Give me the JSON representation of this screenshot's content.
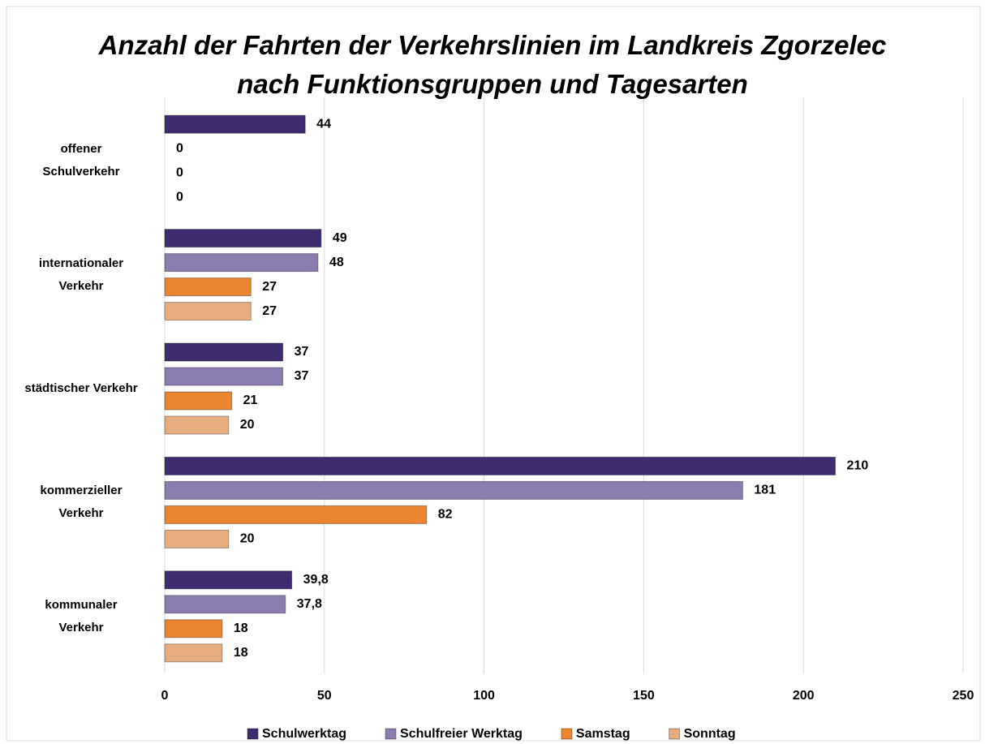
{
  "chart_data": {
    "type": "hbar",
    "title": "Anzahl der Fahrten der Verkehrslinien im Landkreis Zgorzelec\nnach Funktionsgruppen und Tagesarten",
    "categories": [
      "offener\nSchulverkehr",
      "internationaler\nVerkehr",
      "städtischer Verkehr",
      "kommerzieller\nVerkehr",
      "kommunaler\nVerkehr"
    ],
    "series": [
      {
        "name": "Schulwerktag",
        "color": "#3e2b70",
        "values": [
          44,
          49,
          37,
          210,
          39.8
        ],
        "value_labels": [
          "44",
          "49",
          "37",
          "210",
          "39,8"
        ]
      },
      {
        "name": "Schulfreier Werktag",
        "color": "#8c7db0",
        "values": [
          0,
          48,
          37,
          181,
          37.8
        ],
        "value_labels": [
          "0",
          "48",
          "37",
          "181",
          "37,8"
        ]
      },
      {
        "name": "Samstag",
        "color": "#ea8530",
        "values": [
          0,
          27,
          21,
          82,
          18
        ]
      },
      {
        "name": "Sonntag",
        "color": "#e6ad80",
        "values": [
          0,
          27,
          20,
          20,
          18
        ]
      }
    ],
    "xlim": [
      0,
      250
    ],
    "xticks": [
      0,
      50,
      100,
      150,
      200,
      250
    ],
    "grid": true,
    "legend": "bottom"
  }
}
